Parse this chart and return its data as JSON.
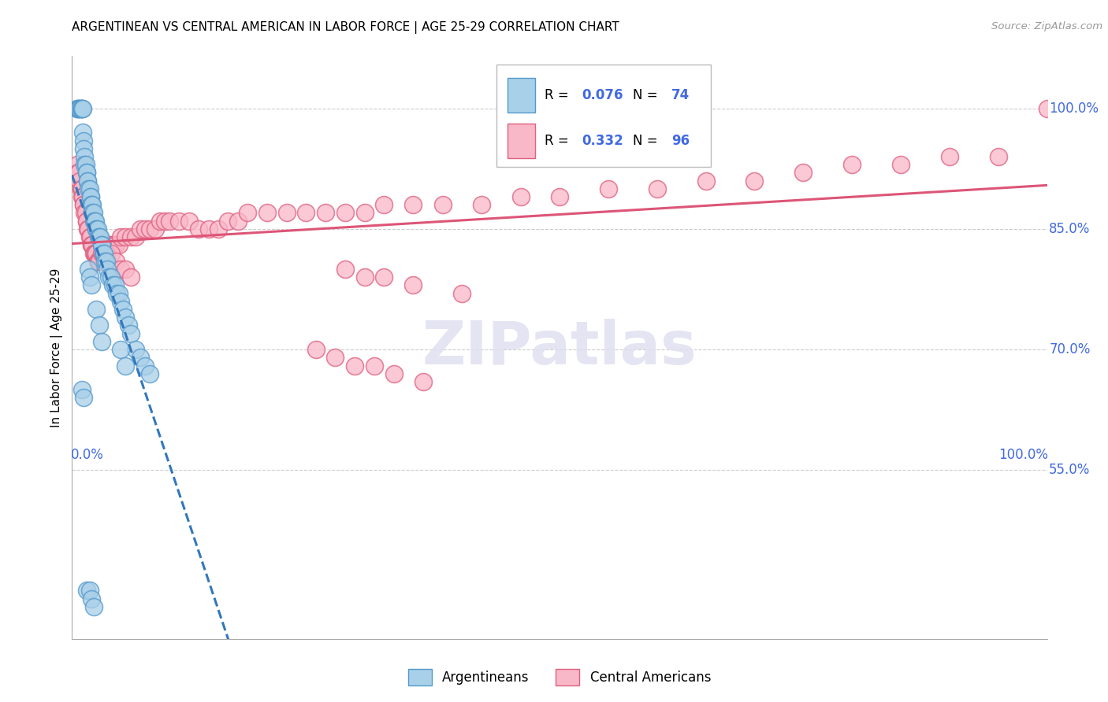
{
  "title": "ARGENTINEAN VS CENTRAL AMERICAN IN LABOR FORCE | AGE 25-29 CORRELATION CHART",
  "source": "Source: ZipAtlas.com",
  "ylabel": "In Labor Force | Age 25-29",
  "color_blue_face": "#a8d0e8",
  "color_blue_edge": "#5599cc",
  "color_pink_face": "#f9b8c8",
  "color_pink_edge": "#e06080",
  "color_line_blue": "#3377bb",
  "color_line_pink": "#dd5577",
  "color_axis_blue": "#4169E1",
  "color_grid": "#cccccc",
  "legend_blue_R": "0.076",
  "legend_blue_N": "74",
  "legend_pink_R": "0.332",
  "legend_pink_N": "96",
  "xlim": [
    0.0,
    1.0
  ],
  "ylim": [
    0.34,
    1.065
  ],
  "ytick_vals": [
    0.55,
    0.7,
    0.85,
    1.0
  ],
  "ytick_labels": [
    "55.0%",
    "70.0%",
    "85.0%",
    "100.0%"
  ],
  "arg_x": [
    0.005,
    0.005,
    0.007,
    0.007,
    0.008,
    0.009,
    0.01,
    0.01,
    0.01,
    0.011,
    0.011,
    0.012,
    0.012,
    0.013,
    0.013,
    0.014,
    0.015,
    0.015,
    0.016,
    0.016,
    0.017,
    0.018,
    0.019,
    0.019,
    0.02,
    0.02,
    0.021,
    0.021,
    0.022,
    0.022,
    0.023,
    0.024,
    0.025,
    0.025,
    0.026,
    0.027,
    0.028,
    0.029,
    0.03,
    0.03,
    0.032,
    0.033,
    0.034,
    0.035,
    0.036,
    0.038,
    0.04,
    0.042,
    0.044,
    0.046,
    0.048,
    0.05,
    0.052,
    0.055,
    0.058,
    0.06,
    0.065,
    0.07,
    0.075,
    0.08,
    0.017,
    0.018,
    0.02,
    0.025,
    0.028,
    0.03,
    0.05,
    0.055,
    0.01,
    0.012,
    0.015,
    0.018,
    0.02,
    0.022
  ],
  "arg_y": [
    1.0,
    1.0,
    1.0,
    1.0,
    1.0,
    1.0,
    1.0,
    1.0,
    1.0,
    1.0,
    0.97,
    0.96,
    0.95,
    0.94,
    0.93,
    0.93,
    0.92,
    0.92,
    0.91,
    0.91,
    0.9,
    0.9,
    0.89,
    0.89,
    0.88,
    0.88,
    0.88,
    0.87,
    0.87,
    0.86,
    0.86,
    0.86,
    0.85,
    0.85,
    0.85,
    0.84,
    0.84,
    0.84,
    0.83,
    0.83,
    0.82,
    0.82,
    0.81,
    0.81,
    0.8,
    0.79,
    0.79,
    0.78,
    0.78,
    0.77,
    0.77,
    0.76,
    0.75,
    0.74,
    0.73,
    0.72,
    0.7,
    0.69,
    0.68,
    0.67,
    0.8,
    0.79,
    0.78,
    0.75,
    0.73,
    0.71,
    0.7,
    0.68,
    0.65,
    0.64,
    0.4,
    0.4,
    0.39,
    0.38
  ],
  "ca_x": [
    0.005,
    0.006,
    0.007,
    0.008,
    0.009,
    0.01,
    0.01,
    0.011,
    0.012,
    0.012,
    0.013,
    0.014,
    0.015,
    0.015,
    0.016,
    0.017,
    0.018,
    0.019,
    0.02,
    0.02,
    0.021,
    0.022,
    0.023,
    0.024,
    0.025,
    0.026,
    0.027,
    0.028,
    0.03,
    0.032,
    0.034,
    0.036,
    0.038,
    0.04,
    0.043,
    0.045,
    0.048,
    0.05,
    0.055,
    0.06,
    0.065,
    0.07,
    0.075,
    0.08,
    0.085,
    0.09,
    0.095,
    0.1,
    0.11,
    0.12,
    0.13,
    0.14,
    0.15,
    0.16,
    0.17,
    0.18,
    0.2,
    0.22,
    0.24,
    0.26,
    0.28,
    0.3,
    0.32,
    0.35,
    0.38,
    0.42,
    0.46,
    0.5,
    0.55,
    0.6,
    0.65,
    0.7,
    0.75,
    0.8,
    0.85,
    0.9,
    0.95,
    1.0,
    0.28,
    0.3,
    0.32,
    0.35,
    0.4,
    0.03,
    0.035,
    0.04,
    0.045,
    0.05,
    0.055,
    0.06,
    0.25,
    0.27,
    0.29,
    0.31,
    0.33,
    0.36
  ],
  "ca_y": [
    0.93,
    0.92,
    0.92,
    0.91,
    0.9,
    0.9,
    0.89,
    0.89,
    0.88,
    0.88,
    0.87,
    0.87,
    0.86,
    0.86,
    0.85,
    0.85,
    0.84,
    0.84,
    0.83,
    0.83,
    0.83,
    0.82,
    0.82,
    0.82,
    0.82,
    0.81,
    0.81,
    0.81,
    0.82,
    0.82,
    0.82,
    0.82,
    0.83,
    0.83,
    0.83,
    0.83,
    0.83,
    0.84,
    0.84,
    0.84,
    0.84,
    0.85,
    0.85,
    0.85,
    0.85,
    0.86,
    0.86,
    0.86,
    0.86,
    0.86,
    0.85,
    0.85,
    0.85,
    0.86,
    0.86,
    0.87,
    0.87,
    0.87,
    0.87,
    0.87,
    0.87,
    0.87,
    0.88,
    0.88,
    0.88,
    0.88,
    0.89,
    0.89,
    0.9,
    0.9,
    0.91,
    0.91,
    0.92,
    0.93,
    0.93,
    0.94,
    0.94,
    1.0,
    0.8,
    0.79,
    0.79,
    0.78,
    0.77,
    0.83,
    0.82,
    0.82,
    0.81,
    0.8,
    0.8,
    0.79,
    0.7,
    0.69,
    0.68,
    0.68,
    0.67,
    0.66
  ]
}
